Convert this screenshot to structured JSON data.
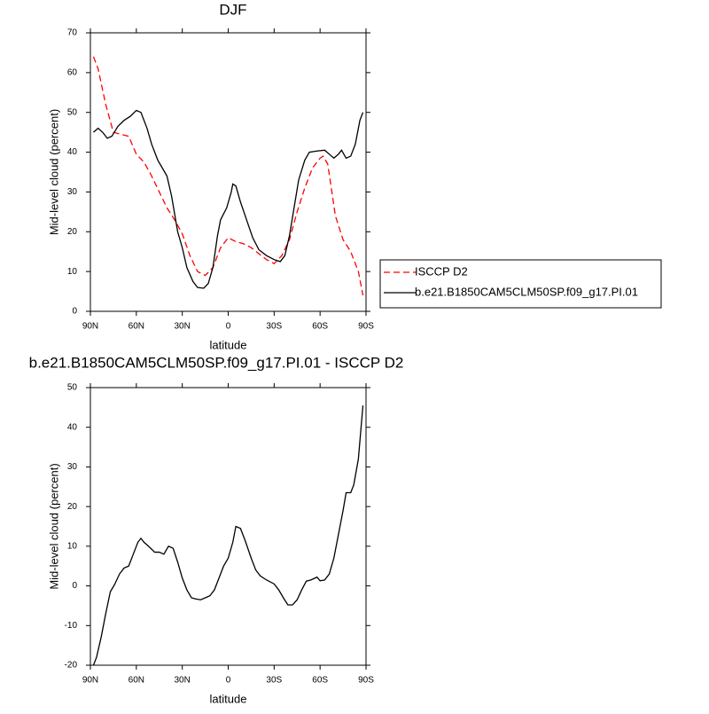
{
  "chart_data": [
    {
      "type": "line",
      "title": "DJF",
      "xlabel": "latitude",
      "ylabel": "Mid-level cloud (percent)",
      "xlim": [
        90,
        -90
      ],
      "ylim": [
        0,
        70
      ],
      "xticks": [
        {
          "value": 90,
          "label": "90N"
        },
        {
          "value": 60,
          "label": "60N"
        },
        {
          "value": 30,
          "label": "30N"
        },
        0,
        {
          "value": -30,
          "label": "30S"
        },
        {
          "value": -60,
          "label": "60S"
        },
        {
          "value": -90,
          "label": "90S"
        }
      ],
      "yticks": [
        0,
        10,
        20,
        30,
        40,
        50,
        60,
        70
      ],
      "legend": "right",
      "series": [
        {
          "name": "ISCCP D2",
          "color": "#ff0000",
          "line_style": "dashed",
          "x": [
            88,
            85,
            80,
            75,
            70,
            65,
            60,
            55,
            50,
            45,
            40,
            35,
            30,
            25,
            20,
            15,
            10,
            5,
            0,
            -5,
            -10,
            -15,
            -20,
            -25,
            -30,
            -35,
            -40,
            -45,
            -50,
            -55,
            -60,
            -62,
            -65,
            -70,
            -75,
            -80,
            -85,
            -88
          ],
          "values": [
            64,
            61,
            52,
            45,
            44.5,
            44,
            39.5,
            37.5,
            34,
            30,
            26,
            23,
            19.5,
            14,
            10,
            9,
            11,
            16,
            18.5,
            17.5,
            17,
            16,
            14.5,
            13,
            12,
            14,
            18,
            25,
            31,
            36,
            38.5,
            39,
            37,
            24,
            18,
            15,
            10,
            4
          ]
        },
        {
          "name": "b.e21.B1850CAM5CLM50SP.f09_g17.PI.01",
          "color": "#000000",
          "line_style": "solid",
          "x": [
            88,
            85,
            82,
            79,
            76,
            72,
            68,
            64,
            60,
            57,
            53,
            50,
            46,
            43,
            40,
            37,
            33,
            30,
            27,
            23,
            20,
            16,
            13,
            10,
            7,
            5,
            3,
            1,
            -2,
            -3,
            -5,
            -8,
            -12,
            -16,
            -20,
            -25,
            -30,
            -34,
            -37,
            -40,
            -43,
            -46,
            -50,
            -53,
            -58,
            -63,
            -66,
            -69,
            -72,
            -74,
            -77,
            -80,
            -83,
            -86,
            -88
          ],
          "values": [
            45,
            46,
            45,
            43.5,
            44,
            46.5,
            48,
            49,
            50.5,
            50,
            46,
            42,
            38,
            36,
            34,
            29,
            20,
            16,
            11,
            7.5,
            6,
            5.8,
            7,
            11,
            19,
            23,
            24.5,
            26,
            30,
            32,
            31.5,
            27.5,
            23,
            18.5,
            15.5,
            14,
            13,
            12.5,
            14,
            19,
            26,
            33,
            38,
            40,
            40.3,
            40.5,
            39.5,
            38.5,
            39.5,
            40.5,
            38.5,
            39,
            42,
            48,
            50
          ]
        }
      ]
    },
    {
      "type": "line",
      "title": "b.e21.B1850CAM5CLM50SP.f09_g17.PI.01 - ISCCP D2",
      "xlabel": "latitude",
      "ylabel": "Mid-level cloud (percent)",
      "xlim": [
        90,
        -90
      ],
      "ylim": [
        -20,
        50
      ],
      "xticks": [
        {
          "value": 90,
          "label": "90N"
        },
        {
          "value": 60,
          "label": "60N"
        },
        {
          "value": 30,
          "label": "30N"
        },
        0,
        {
          "value": -30,
          "label": "30S"
        },
        {
          "value": -60,
          "label": "60S"
        },
        {
          "value": -90,
          "label": "90S"
        }
      ],
      "yticks": [
        -20,
        -10,
        0,
        10,
        20,
        30,
        40,
        50
      ],
      "series": [
        {
          "color": "#000000",
          "line_style": "solid",
          "x": [
            88,
            86,
            83,
            80,
            77,
            74,
            71,
            68,
            65,
            62,
            59,
            57,
            55,
            52,
            48,
            45,
            42,
            39,
            36,
            33,
            30,
            27,
            24,
            21,
            18,
            15,
            12,
            9,
            6,
            3,
            0,
            -3,
            -5,
            -8,
            -11,
            -15,
            -18,
            -21,
            -25,
            -30,
            -33,
            -36,
            -39,
            -42,
            -45,
            -48,
            -51,
            -54,
            -58,
            -60,
            -63,
            -66,
            -69,
            -72,
            -75,
            -77,
            -80,
            -82,
            -85,
            -88
          ],
          "values": [
            -20,
            -18,
            -13,
            -7,
            -1.5,
            0.5,
            3,
            4.5,
            5,
            8,
            11,
            12,
            11,
            10,
            8.5,
            8.5,
            8,
            10,
            9.5,
            6,
            2,
            -1,
            -3,
            -3.3,
            -3.5,
            -3,
            -2.5,
            -1,
            2,
            5,
            7,
            11,
            15,
            14.5,
            11.5,
            7,
            4,
            2.5,
            1.5,
            0.5,
            -1,
            -3,
            -4.8,
            -4.8,
            -3.5,
            -1,
            1.2,
            1.5,
            2.2,
            1.3,
            1.5,
            3,
            7,
            13,
            19,
            23.5,
            23.5,
            25.5,
            32,
            45.5
          ]
        }
      ]
    }
  ]
}
